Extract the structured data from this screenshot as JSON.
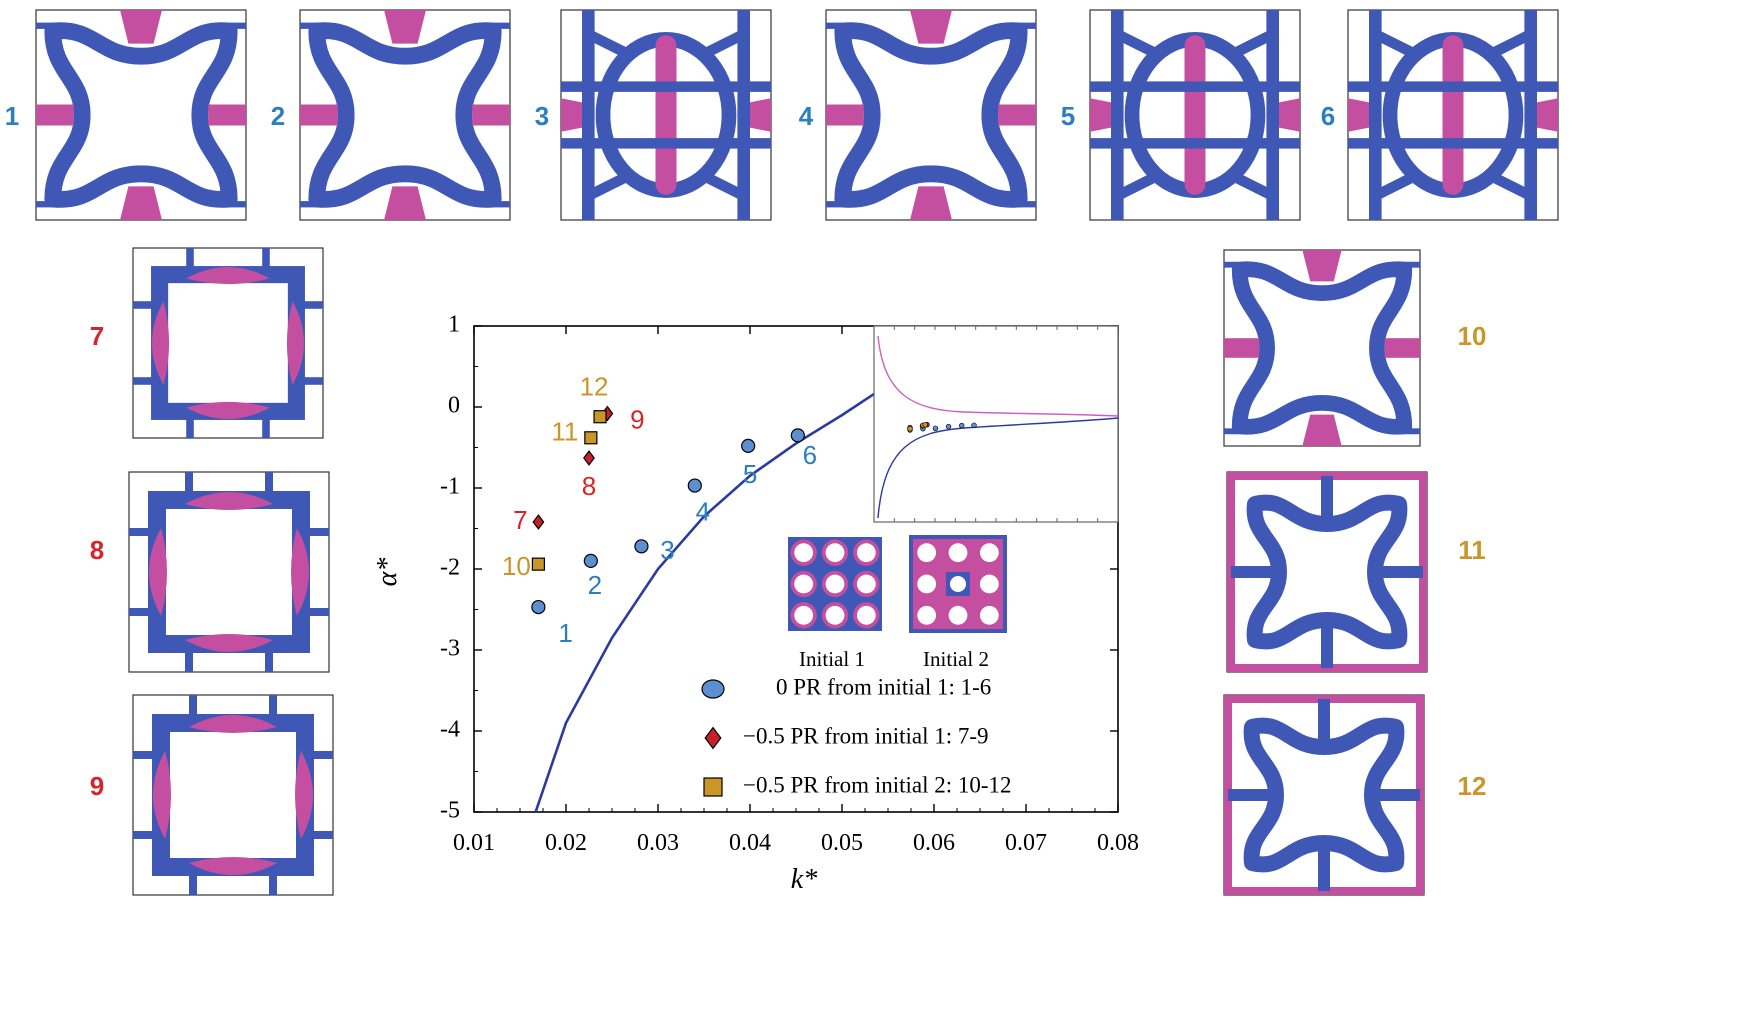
{
  "colors": {
    "blue": "#3f58b6",
    "pink": "#c44fa0",
    "circle_fill": "#5b8fd0",
    "diamond_fill": "#c8202a",
    "square_fill": "#c9962a",
    "label_blue": "#2b7fc0",
    "label_red": "#d6252a",
    "label_gold": "#c9962a",
    "curve": "#2c3aa0",
    "inset_pink": "#d060c0"
  },
  "cells": [
    {
      "id": "1",
      "label": "1",
      "group": "blue",
      "variant": "a"
    },
    {
      "id": "2",
      "label": "2",
      "group": "blue",
      "variant": "a"
    },
    {
      "id": "3",
      "label": "3",
      "group": "blue",
      "variant": "b"
    },
    {
      "id": "4",
      "label": "4",
      "group": "blue",
      "variant": "a"
    },
    {
      "id": "5",
      "label": "5",
      "group": "blue",
      "variant": "b"
    },
    {
      "id": "6",
      "label": "6",
      "group": "blue",
      "variant": "b"
    },
    {
      "id": "7",
      "label": "7",
      "group": "red",
      "variant": "c"
    },
    {
      "id": "8",
      "label": "8",
      "group": "red",
      "variant": "c"
    },
    {
      "id": "9",
      "label": "9",
      "group": "red",
      "variant": "c"
    },
    {
      "id": "10",
      "label": "10",
      "group": "gold",
      "variant": "a"
    },
    {
      "id": "11",
      "label": "11",
      "group": "gold",
      "variant": "d"
    },
    {
      "id": "12",
      "label": "12",
      "group": "gold",
      "variant": "d"
    }
  ],
  "chart_data": {
    "type": "scatter",
    "xlabel": "k*",
    "ylabel": "α*",
    "xlim": [
      0.01,
      0.08
    ],
    "ylim": [
      -5,
      1
    ],
    "xticks": [
      "0.01",
      "0.02",
      "0.03",
      "0.04",
      "0.05",
      "0.06",
      "0.07",
      "0.08"
    ],
    "yticks": [
      "1",
      "0",
      "-1",
      "-2",
      "-3",
      "-4",
      "-5"
    ],
    "series": [
      {
        "name": "0 PR from initial 1: 1-6",
        "marker": "circle",
        "points": [
          {
            "label": "1",
            "x": 0.017,
            "y": -2.47
          },
          {
            "label": "2",
            "x": 0.0227,
            "y": -1.9
          },
          {
            "label": "3",
            "x": 0.0282,
            "y": -1.72
          },
          {
            "label": "4",
            "x": 0.034,
            "y": -0.97
          },
          {
            "label": "5",
            "x": 0.0398,
            "y": -0.48
          },
          {
            "label": "6",
            "x": 0.0452,
            "y": -0.35
          }
        ]
      },
      {
        "name": "−0.5 PR from initial 1: 7-9",
        "marker": "diamond",
        "points": [
          {
            "label": "7",
            "x": 0.017,
            "y": -1.42
          },
          {
            "label": "8",
            "x": 0.0225,
            "y": -0.63
          },
          {
            "label": "9",
            "x": 0.0245,
            "y": -0.08
          }
        ]
      },
      {
        "name": "−0.5 PR from initial 2: 10-12",
        "marker": "square",
        "points": [
          {
            "label": "10",
            "x": 0.017,
            "y": -1.94
          },
          {
            "label": "11",
            "x": 0.0227,
            "y": -0.38
          },
          {
            "label": "12",
            "x": 0.0237,
            "y": -0.12
          }
        ]
      }
    ],
    "bound_curve": {
      "x": [
        0.0167,
        0.02,
        0.025,
        0.03,
        0.035,
        0.04,
        0.045,
        0.05,
        0.054
      ],
      "y": [
        -5.0,
        -3.9,
        -2.85,
        -2.0,
        -1.35,
        -0.85,
        -0.45,
        -0.1,
        0.2
      ]
    },
    "initial_labels": [
      "Initial 1",
      "Initial 2"
    ]
  }
}
